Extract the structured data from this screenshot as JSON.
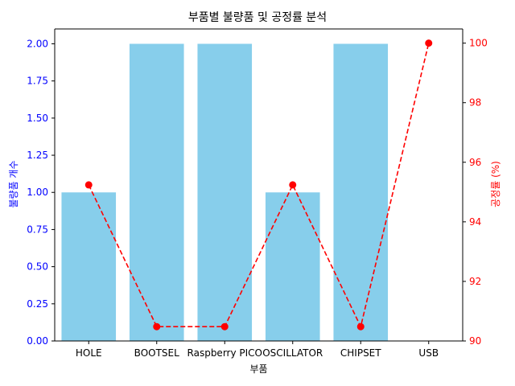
{
  "chart_data": {
    "type": "bar",
    "title": "부품별 불량품 및 공정률 분석",
    "xlabel": "부품",
    "ylabel": "불량품 개수",
    "y2label": "공정률 (%)",
    "categories": [
      "HOLE",
      "BOOTSEL",
      "Raspberry PICO",
      "OSCILLATOR",
      "CHIPSET",
      "USB"
    ],
    "series": [
      {
        "name": "불량품 개수",
        "type": "bar",
        "axis": "left",
        "color": "#87ceeb",
        "values": [
          1,
          2,
          2,
          1,
          2,
          0
        ]
      },
      {
        "name": "공정률 (%)",
        "type": "line",
        "axis": "right",
        "color": "#ff0000",
        "line_style": "dashed",
        "marker": "circle",
        "values": [
          95.24,
          90.48,
          90.48,
          95.24,
          90.48,
          100.0
        ]
      }
    ],
    "ylim": [
      0,
      2.1
    ],
    "y_ticks": [
      "0.00",
      "0.25",
      "0.50",
      "0.75",
      "1.00",
      "1.25",
      "1.50",
      "1.75",
      "2.00"
    ],
    "y_tick_values": [
      0,
      0.25,
      0.5,
      0.75,
      1.0,
      1.25,
      1.5,
      1.75,
      2.0
    ],
    "y2lim": [
      90,
      100.476
    ],
    "y2_ticks": [
      "90",
      "92",
      "94",
      "96",
      "98",
      "100"
    ],
    "y2_tick_values": [
      90,
      92,
      94,
      96,
      98,
      100
    ],
    "left_axis_color": "#0000ff",
    "right_axis_color": "#ff0000",
    "grid": false,
    "legend": "none"
  }
}
